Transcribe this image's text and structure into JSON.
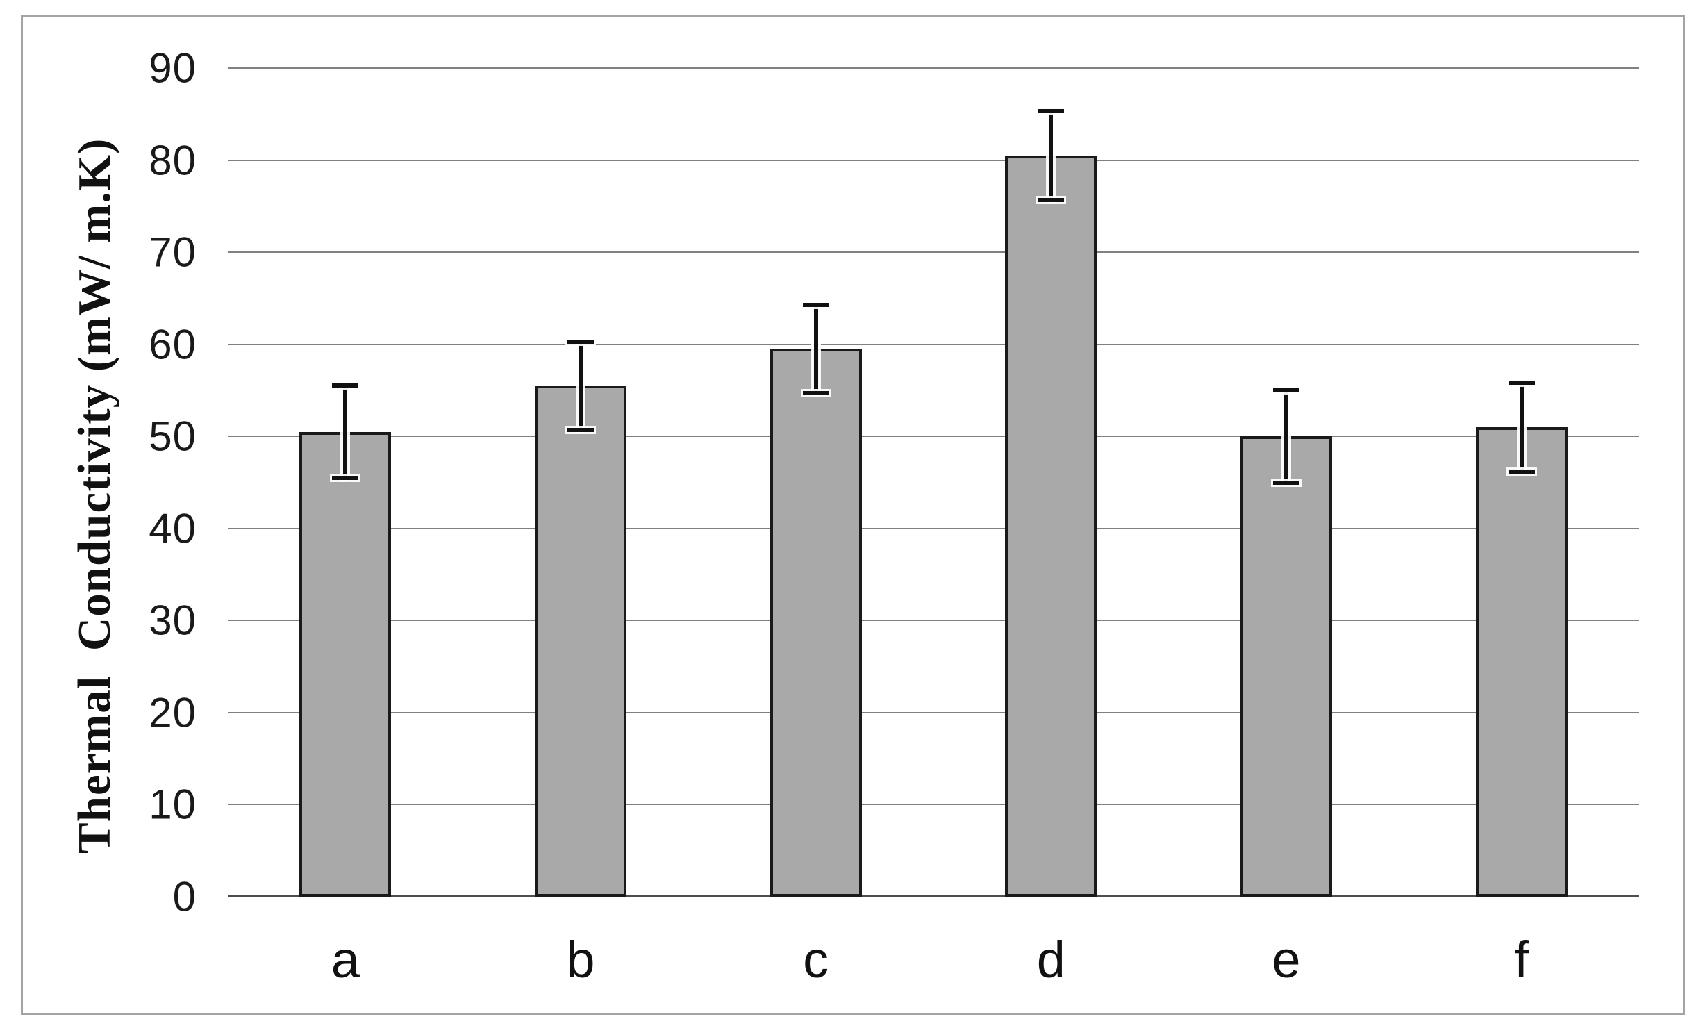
{
  "figure": {
    "background": "#ffffff",
    "border_color": "#a3a3a3"
  },
  "chart_data": {
    "type": "bar",
    "title": "",
    "xlabel": "",
    "ylabel": "Thermal  Conductivity (mW/ m.K)",
    "categories": [
      "a",
      "b",
      "c",
      "d",
      "e",
      "f"
    ],
    "values": [
      50.5,
      55.5,
      59.5,
      80.5,
      50,
      51
    ],
    "error_bars": [
      5,
      4.8,
      4.8,
      4.8,
      5,
      4.8
    ],
    "ylim": [
      0,
      90
    ],
    "ytick_interval": 10,
    "yticks": [
      90,
      80,
      70,
      60,
      50,
      40,
      30,
      20,
      10,
      0
    ],
    "grid": true,
    "legend_position": "none",
    "bar_color": "#a9a9a9",
    "bar_border_color": "#1a1a1a",
    "gridline_color": "#808080",
    "axis_line_color": "#4d4d4d"
  }
}
